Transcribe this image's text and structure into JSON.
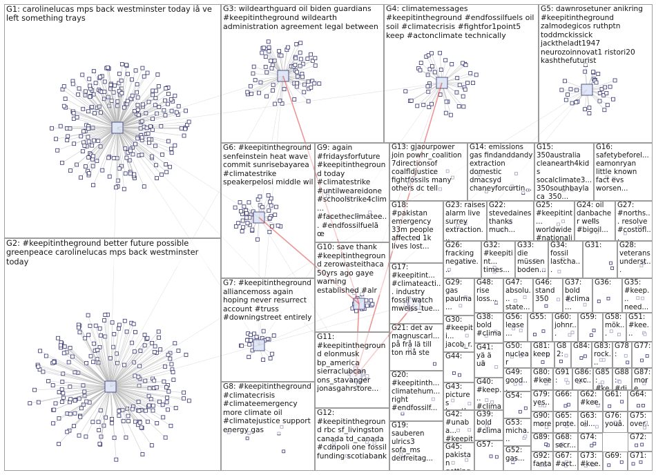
{
  "colors": {
    "border": "#9c9c9c",
    "edge": "#b4b4b4",
    "edge_red": "#e23a3a",
    "node_fill": "#ffffff",
    "node_stroke": "#2f2f6f"
  },
  "clusters": [
    {
      "id": "G1",
      "label": "G1: carolinelucas mps back westminster today iâ ve left something trays"
    },
    {
      "id": "G2",
      "label": "G2: #keepitintheground better future possible greenpeace carolinelucas mps back westminster today"
    },
    {
      "id": "G3",
      "label": "G3: wildearthguard oil biden guardians #keepitintheground wildearth administration agreement legal between"
    },
    {
      "id": "G4",
      "label": "G4: climatemessages #keepitintheground #endfossilfuels oil soil #climatecrisis #fightfor1point5 keep #actonclimate technically"
    },
    {
      "id": "G5",
      "label": "G5: dawnrosetuner anikring #keepitintheground zalmodegicos ruthptn toddmckissick jacktheladt1947 neurozoinnovat1 ristori20 kashthefuturist"
    },
    {
      "id": "G6",
      "label": "G6: #keepitintheground senfeinstein heat wave commit sunrisebayarea #climatestrike speakerpelosi middle wil"
    },
    {
      "id": "G7",
      "label": "G7: #keepitintheground alliancemoss again hoping never resurrect account #truss #downingstreet entirely"
    },
    {
      "id": "G8",
      "label": "G8: #keepitintheground #climatecrisis #climateemergency more climate oil #climatejustice support energy gas"
    },
    {
      "id": "G9",
      "label": "G9: again #fridaysforfuture #keepitintheground today #climatestrike #untilweareidone #schoolstrike4clim... #facetheclimatee... #endfossilfuelã œ"
    },
    {
      "id": "G10",
      "label": "G10: save thank #keepitintheground zerowasteithaca 50yrs ago gaye warning established #alr"
    },
    {
      "id": "G11",
      "label": "G11: #keepitintheground elonmusk bp_america sierraclubcan ons_stavanger jonasgahrstore..."
    },
    {
      "id": "G12",
      "label": "G12: #keepitintheground rbc sf_livingston canada td_canada #cdnpoli one fossil funding scotiabank"
    },
    {
      "id": "G13",
      "label": "G13: gjaourpower join powhr_coalition 7directionsof coalfldjustice fightfossils many others dc tell"
    },
    {
      "id": "G14",
      "label": "G14: emissions gas findanddandy extraction domestic dmacsyd chaneyforcurtin..."
    },
    {
      "id": "G15",
      "label": "G15: 350australia cleanearth4kids socalclimate3... 350southbayla ca_350..."
    },
    {
      "id": "G16",
      "label": "G16: safetybeforel... eamonryan little known fact evs worsen..."
    },
    {
      "id": "G17",
      "label": "G17: #keepitint... #climateacti... industry fossil watch mweiss_tue..."
    },
    {
      "id": "G18",
      "label": "G18: #pakistan emergency 33m people affected 1k lives lost..."
    },
    {
      "id": "G19",
      "label": "G19: sauberen ulrics3 sofa_ms derfreitag..."
    },
    {
      "id": "G20",
      "label": "G20: #keepitinth... climatehum... right #endfossilf..."
    },
    {
      "id": "G21",
      "label": "G21: det av magnuscarl... på frå lä till ton må ste"
    },
    {
      "id": "G22",
      "label": "G22: stevedaines thanks much..."
    },
    {
      "id": "G23",
      "label": "G23: raises alarm live surrey extraction..."
    },
    {
      "id": "G24",
      "label": "G24: oil danbacher wells #bigoil..."
    },
    {
      "id": "G25",
      "label": "G25: #keepitint... worldwide #nationali..."
    },
    {
      "id": "G26",
      "label": "G26: fracking negative..."
    },
    {
      "id": "G27",
      "label": "G27: #norths... resolve #costofl..."
    },
    {
      "id": "G28",
      "label": "G28: veterans underst..."
    },
    {
      "id": "G29",
      "label": "G29: gas paulma..."
    },
    {
      "id": "G30",
      "label": "G30: #keepiti... jacob_r..."
    },
    {
      "id": "G31",
      "label": "G31:"
    },
    {
      "id": "G32",
      "label": "G32: #keepitint... times..."
    },
    {
      "id": "G33",
      "label": "G33: die müssen boden..."
    },
    {
      "id": "G34",
      "label": "G34: fossil lastcha..."
    },
    {
      "id": "G35",
      "label": "G35: #keep... need..."
    },
    {
      "id": "G36",
      "label": "G36:"
    },
    {
      "id": "G37",
      "label": "G37: bold #clima..."
    },
    {
      "id": "G38",
      "label": "G38: bold #clima..."
    },
    {
      "id": "G39",
      "label": "G39: bold #clima..."
    },
    {
      "id": "G40",
      "label": "G40: #keep... #clima..."
    },
    {
      "id": "G41",
      "label": "G41: yä ä uä"
    },
    {
      "id": "G42",
      "label": "G42: #unaba... #keepiti..."
    },
    {
      "id": "G43",
      "label": "G43: pictures heartbr..."
    },
    {
      "id": "G44",
      "label": "G44:"
    },
    {
      "id": "G45",
      "label": "G45: pakistan getting..."
    },
    {
      "id": "G46",
      "label": "G46: stand 350"
    },
    {
      "id": "G47",
      "label": "G47: absolu... state..."
    },
    {
      "id": "G48",
      "label": "G48: rise loss..."
    },
    {
      "id": "G49",
      "label": "G49: good..."
    },
    {
      "id": "G50",
      "label": "G50: nuclear"
    },
    {
      "id": "G51",
      "label": "G51: #kee..."
    },
    {
      "id": "G52",
      "label": "G52: gas..."
    },
    {
      "id": "G53",
      "label": "G53: micha..."
    },
    {
      "id": "G54",
      "label": "G54:"
    },
    {
      "id": "G55",
      "label": "G55:"
    },
    {
      "id": "G56",
      "label": "G56: lease..."
    },
    {
      "id": "G57",
      "label": "G57:"
    },
    {
      "id": "G58",
      "label": "G58: mök..."
    },
    {
      "id": "G59",
      "label": "G59:"
    },
    {
      "id": "G60",
      "label": "G60: johnr..."
    },
    {
      "id": "G61",
      "label": "G61:"
    },
    {
      "id": "G62",
      "label": "G62: #kee..."
    },
    {
      "id": "G63",
      "label": "G63: oil..."
    },
    {
      "id": "G64",
      "label": "G64:"
    },
    {
      "id": "G65",
      "label": "G65: prote..."
    },
    {
      "id": "G66",
      "label": "G66:"
    },
    {
      "id": "G67",
      "label": "G67: #act..."
    },
    {
      "id": "G68",
      "label": "G68: secr..."
    },
    {
      "id": "G69",
      "label": "G69:"
    },
    {
      "id": "G71",
      "label": "G71:"
    },
    {
      "id": "G72",
      "label": "G72:"
    },
    {
      "id": "G73",
      "label": "G73: #kee..."
    },
    {
      "id": "G74",
      "label": "G74:"
    },
    {
      "id": "G75",
      "label": "G75: over..."
    },
    {
      "id": "G76",
      "label": "G76: youâ..."
    },
    {
      "id": "G77",
      "label": "G77:"
    },
    {
      "id": "G78",
      "label": "G78:"
    },
    {
      "id": "G79",
      "label": "G79: yes..."
    },
    {
      "id": "G80",
      "label": "G80: #kee..."
    },
    {
      "id": "G81",
      "label": "G81: keep"
    },
    {
      "id": "G82",
      "label": "G82:"
    },
    {
      "id": "G83",
      "label": "G83: rock..."
    },
    {
      "id": "G84",
      "label": "G84:"
    },
    {
      "id": "G85",
      "label": "G85: #kee..."
    },
    {
      "id": "G86",
      "label": "G86: exc..."
    },
    {
      "id": "G87",
      "label": "G87: more"
    },
    {
      "id": "G88",
      "label": "G88: #di..."
    },
    {
      "id": "G89",
      "label": "G89:"
    },
    {
      "id": "G90",
      "label": "G90: more"
    },
    {
      "id": "G91",
      "label": "G91:"
    },
    {
      "id": "G92",
      "label": "G92: fanta..."
    }
  ]
}
